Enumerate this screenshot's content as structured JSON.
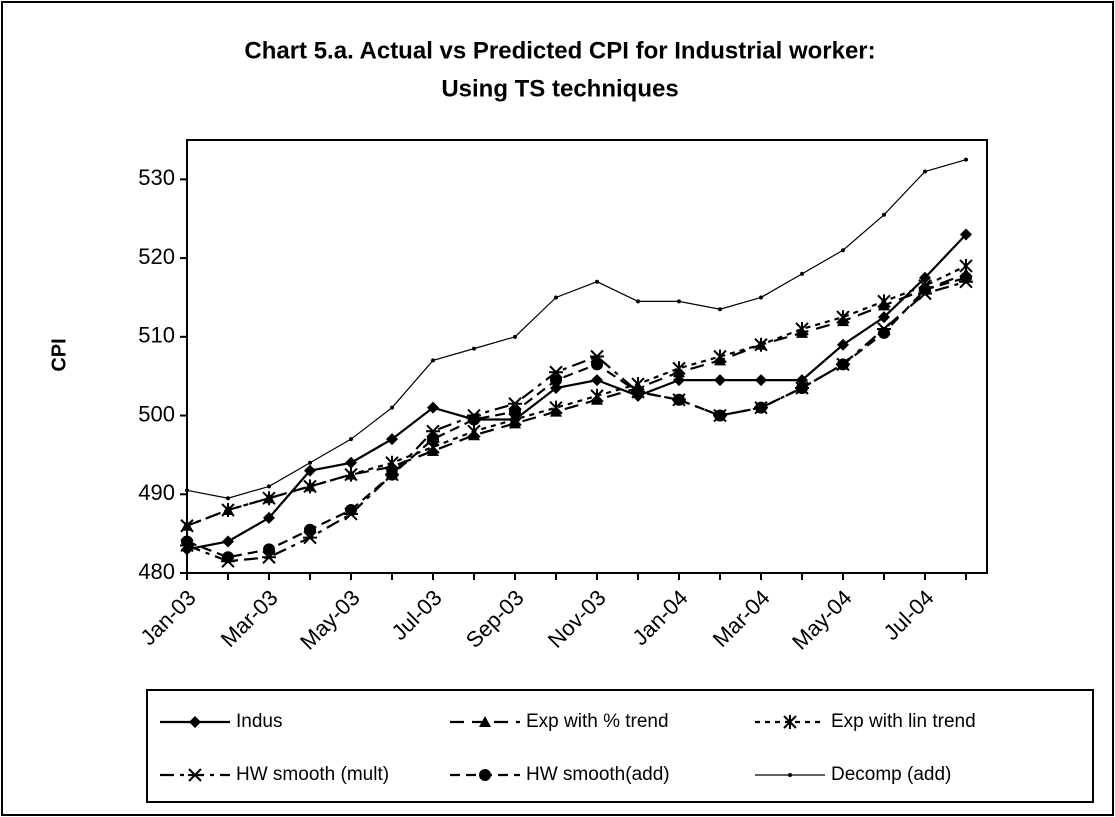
{
  "chart_data": {
    "type": "line",
    "title": [
      "Chart 5.a. Actual vs Predicted CPI for Industrial worker:",
      "Using TS techniques"
    ],
    "y_label": "CPI",
    "categories": [
      "Jan-03",
      null,
      "Mar-03",
      null,
      "May-03",
      null,
      "Jul-03",
      null,
      "Sep-03",
      null,
      "Nov-03",
      null,
      "Jan-04",
      null,
      "Mar-04",
      null,
      "May-04",
      null,
      "Jul-04",
      null
    ],
    "ylim": [
      480,
      535
    ],
    "yticks": [
      480,
      490,
      500,
      510,
      520,
      530
    ],
    "grid": false,
    "legend": "bottom",
    "series": [
      {
        "name": "Indus",
        "color": "#000000",
        "values": [
          483,
          484,
          487,
          493,
          494,
          497,
          501,
          499.5,
          499.5,
          503.5,
          504.5,
          502.5,
          504.5,
          504.5,
          504.5,
          504.5,
          509,
          512.5,
          517.5,
          523
        ]
      },
      {
        "name": "Exp with % trend",
        "color": "#000000",
        "values": [
          486,
          488,
          489.5,
          491,
          492.5,
          493.5,
          495.5,
          497.5,
          499,
          500.5,
          502,
          503.5,
          505.5,
          507,
          509,
          510.5,
          512,
          514,
          516,
          518
        ]
      },
      {
        "name": "Exp with lin trend",
        "color": "#000000",
        "values": [
          486,
          488,
          489.5,
          491,
          492.5,
          494,
          496,
          498,
          499.5,
          501,
          502.5,
          504,
          506,
          507.5,
          509,
          511,
          512.5,
          514.5,
          516.5,
          519
        ]
      },
      {
        "name": "HW smooth (mult)",
        "color": "#000000",
        "values": [
          483.5,
          481.5,
          482,
          484.5,
          487.5,
          492.5,
          498,
          500,
          501.5,
          505.5,
          507.5,
          503,
          502,
          500,
          501,
          503.5,
          506.5,
          511,
          515.5,
          517
        ]
      },
      {
        "name": "HW smooth(add)",
        "color": "#000000",
        "values": [
          484,
          482,
          483,
          485.5,
          488,
          492.5,
          497,
          499.5,
          500.5,
          504.5,
          506.5,
          503,
          502,
          500,
          501,
          503.5,
          506.5,
          510.5,
          516,
          517.5
        ]
      },
      {
        "name": "Decomp (add)",
        "color": "#000000",
        "values": [
          490.5,
          489.5,
          491,
          494,
          497,
          501,
          507,
          508.5,
          510,
          515,
          517,
          514.5,
          514.5,
          513.5,
          515,
          518,
          521,
          525.5,
          531,
          532.5
        ]
      }
    ]
  }
}
